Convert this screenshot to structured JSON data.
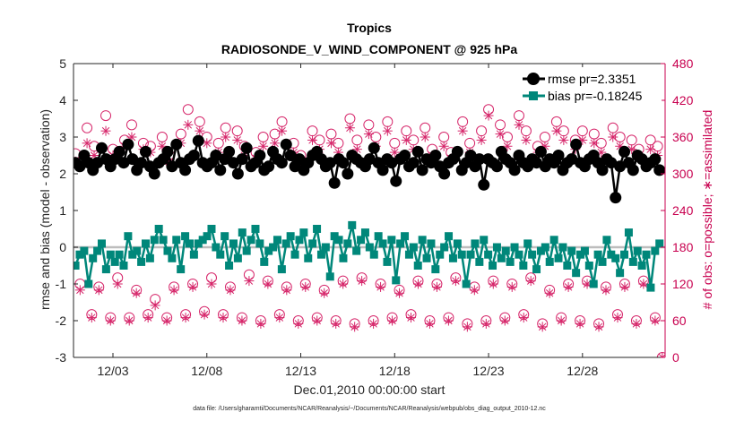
{
  "chart_data": {
    "type": "line",
    "title": "Tropics",
    "subtitle": "RADIOSONDE_V_WIND_COMPONENT @ 925 hPa",
    "xlabel": "Dec.01,2010 00:00:00 start",
    "ylabel_left": "rmse and bias (model - observation)",
    "ylabel_right": "# of obs: o=possible; ∗=assimilated",
    "footer": "data file: /Users/gharamti/Documents/NCAR/Reanalysis/~/Documents/NCAR/Reanalysis/webpub/obs_diag_output_2010-12.nc",
    "xlim": [
      0.9,
      32.4
    ],
    "ylim_left": [
      -3,
      5
    ],
    "ylim_right": [
      0,
      480
    ],
    "x_ticks": [
      3,
      8,
      13,
      18,
      23,
      28
    ],
    "x_tick_labels": [
      "12/03",
      "12/08",
      "12/13",
      "12/18",
      "12/23",
      "12/28"
    ],
    "y_ticks_left": [
      "-3",
      "-2",
      "-1",
      "0",
      "1",
      "2",
      "3",
      "4",
      "5"
    ],
    "y_ticks_right": [
      "0",
      "60",
      "120",
      "180",
      "240",
      "300",
      "360",
      "420",
      "480"
    ],
    "legend_position": "top-right",
    "series": [
      {
        "name": "rmse",
        "legend_label": "rmse pr=2.3351",
        "color": "#000000",
        "marker": "filled-circle",
        "axis": "left",
        "values": [
          2.3,
          2.2,
          2.5,
          2.3,
          2.1,
          2.3,
          2.7,
          2.4,
          2.2,
          2.4,
          2.6,
          2.3,
          2.8,
          2.4,
          2.1,
          2.3,
          2.6,
          2.2,
          2.0,
          2.3,
          2.4,
          2.6,
          2.2,
          2.8,
          2.3,
          2.1,
          2.4,
          2.5,
          2.9,
          2.3,
          2.2,
          2.3,
          2.5,
          2.1,
          2.4,
          2.6,
          2.3,
          2.0,
          2.4,
          2.7,
          2.2,
          2.3,
          2.5,
          2.1,
          2.2,
          2.6,
          2.4,
          2.3,
          2.8,
          2.5,
          2.2,
          2.4,
          2.1,
          2.3,
          2.5,
          2.6,
          2.4,
          2.2,
          2.3,
          1.75,
          2.4,
          2.3,
          2.0,
          2.5,
          2.4,
          2.3,
          2.2,
          2.4,
          2.7,
          2.3,
          2.1,
          2.4,
          2.3,
          1.8,
          2.4,
          2.5,
          2.2,
          2.3,
          2.6,
          2.1,
          2.4,
          2.3,
          2.5,
          2.2,
          2.0,
          2.3,
          2.4,
          2.6,
          2.1,
          2.3,
          2.5,
          2.2,
          2.4,
          1.7,
          2.4,
          2.3,
          2.2,
          2.6,
          2.4,
          2.3,
          2.1,
          2.5,
          2.3,
          2.2,
          2.4,
          2.3,
          2.6,
          2.2,
          2.4,
          2.3,
          2.5,
          2.1,
          2.3,
          2.4,
          2.8,
          2.3,
          2.2,
          2.4,
          2.5,
          2.3,
          2.1,
          2.4,
          2.3,
          1.35,
          2.2,
          2.6,
          2.3,
          2.1,
          2.5,
          2.4,
          2.2,
          2.3,
          2.4,
          2.1
        ]
      },
      {
        "name": "bias",
        "legend_label": "bias pr=-0.18245",
        "color": "#00877a",
        "marker": "filled-square",
        "axis": "left",
        "values": [
          -0.5,
          -0.2,
          -0.1,
          -1.0,
          -0.3,
          -0.1,
          0.1,
          -0.6,
          -0.2,
          -0.4,
          -0.2,
          -0.5,
          0.3,
          -0.2,
          -0.1,
          -0.4,
          0.1,
          -0.3,
          0.2,
          0.5,
          0.2,
          -0.1,
          -0.3,
          0.2,
          -0.6,
          0.3,
          0.1,
          -0.2,
          0.1,
          0.2,
          0.3,
          0.5,
          0.0,
          -0.2,
          0.3,
          -0.5,
          0.1,
          -0.3,
          0.4,
          -0.1,
          0.2,
          0.5,
          0.1,
          -0.4,
          -0.1,
          0.0,
          0.2,
          -0.6,
          0.1,
          0.3,
          -0.2,
          0.2,
          0.4,
          -0.3,
          0.1,
          0.5,
          -0.2,
          0.0,
          -0.8,
          0.3,
          0.2,
          -0.3,
          0.1,
          0.6,
          -0.1,
          0.2,
          0.4,
          0.0,
          -0.2,
          0.3,
          0.1,
          -0.4,
          0.2,
          -0.9,
          0.1,
          0.3,
          -0.2,
          0.0,
          -0.5,
          0.2,
          -0.3,
          0.1,
          -0.6,
          -0.2,
          0.0,
          0.3,
          -0.3,
          0.1,
          -0.2,
          -1.0,
          -0.2,
          0.1,
          -0.4,
          0.2,
          -0.2,
          -0.5,
          0.0,
          -0.3,
          -0.1,
          -0.4,
          0.0,
          -0.2,
          -0.5,
          0.1,
          -0.2,
          -0.6,
          -0.1,
          0.0,
          -0.4,
          0.2,
          -0.3,
          0.0,
          -0.5,
          -0.1,
          -0.7,
          -0.2,
          -0.1,
          -0.5,
          -1.0,
          -0.2,
          -0.4,
          0.2,
          -0.2,
          -0.3,
          -0.7,
          -0.2,
          0.4,
          -0.4,
          -0.1,
          -0.5,
          -0.2,
          -1.1,
          -0.1,
          0.1
        ]
      },
      {
        "name": "possible_obs",
        "label": "o = possible",
        "color": "#d6266a",
        "marker": "open-circle",
        "axis": "right",
        "pattern": "alternating high/low every 12 hours; high around 330-420, low around 60-140",
        "high_values": [
          333,
          375,
          345,
          395,
          340,
          355,
          380,
          350,
          345,
          360,
          330,
          365,
          405,
          385,
          360,
          350,
          375,
          370,
          345,
          335,
          360,
          365,
          385,
          350,
          330,
          370,
          355,
          365,
          350,
          390,
          355,
          380,
          360,
          385,
          350,
          370,
          355,
          375,
          340,
          360,
          335,
          385,
          350,
          370,
          405,
          380,
          360,
          395,
          370,
          345,
          360,
          385,
          370,
          355,
          370,
          365,
          350,
          375,
          360,
          355,
          340,
          355,
          345
        ],
        "low_values": [
          120,
          70,
          115,
          65,
          130,
          65,
          110,
          70,
          95,
          65,
          115,
          70,
          120,
          75,
          130,
          70,
          115,
          65,
          135,
          60,
          125,
          70,
          115,
          60,
          120,
          65,
          110,
          60,
          125,
          55,
          130,
          60,
          120,
          65,
          110,
          70,
          125,
          60,
          120,
          65,
          130,
          55,
          115,
          60,
          125,
          65,
          120,
          70,
          130,
          55,
          110,
          65,
          120,
          60,
          125,
          55,
          115,
          70,
          120,
          60,
          125,
          65,
          0
        ]
      },
      {
        "name": "assimilated_obs",
        "label": "∗ = assimilated",
        "color": "#d6266a",
        "marker": "asterisk",
        "axis": "right",
        "pattern": "alternating high/low every 12 hours; high around 320-400, low around 60-130",
        "high_values": [
          320,
          350,
          330,
          370,
          330,
          345,
          360,
          340,
          335,
          345,
          320,
          350,
          380,
          370,
          350,
          335,
          360,
          355,
          330,
          325,
          345,
          350,
          370,
          335,
          320,
          355,
          340,
          350,
          335,
          375,
          340,
          365,
          345,
          370,
          335,
          355,
          340,
          360,
          330,
          345,
          325,
          370,
          335,
          355,
          395,
          365,
          345,
          380,
          355,
          335,
          345,
          370,
          355,
          340,
          355,
          350,
          335,
          360,
          345,
          340,
          330,
          340,
          330
        ],
        "low_values": [
          110,
          65,
          110,
          60,
          120,
          60,
          105,
          65,
          85,
          60,
          110,
          65,
          115,
          70,
          120,
          65,
          110,
          60,
          125,
          55,
          120,
          65,
          110,
          55,
          115,
          60,
          105,
          55,
          120,
          50,
          125,
          55,
          115,
          60,
          105,
          65,
          120,
          55,
          115,
          60,
          125,
          50,
          110,
          55,
          120,
          60,
          115,
          65,
          125,
          50,
          105,
          60,
          115,
          55,
          120,
          50,
          110,
          65,
          115,
          55,
          120,
          60,
          0
        ]
      }
    ]
  }
}
